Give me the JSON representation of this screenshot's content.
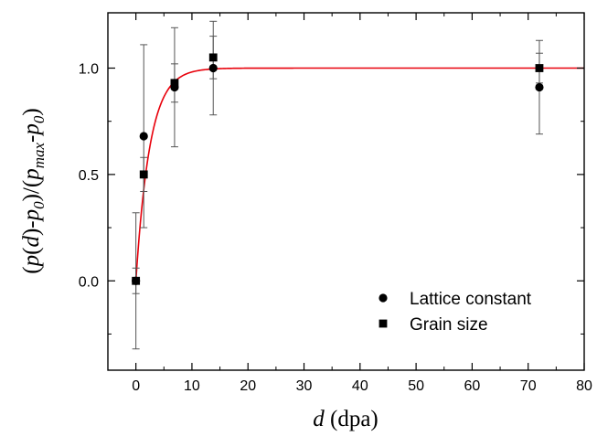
{
  "chart_data": {
    "type": "scatter",
    "xlabel": {
      "italic": "d",
      "rest": " (dpa)"
    },
    "ylabel": [
      {
        "t": "(",
        "s": "n"
      },
      {
        "t": "p",
        "s": "i"
      },
      {
        "t": "(",
        "s": "n"
      },
      {
        "t": "d",
        "s": "i"
      },
      {
        "t": ")-",
        "s": "n"
      },
      {
        "t": "p",
        "s": "i"
      },
      {
        "t": "0",
        "s": "sub"
      },
      {
        "t": ")/(",
        "s": "n"
      },
      {
        "t": "p",
        "s": "i"
      },
      {
        "t": "max",
        "s": "sub"
      },
      {
        "t": "-",
        "s": "n"
      },
      {
        "t": "p",
        "s": "i"
      },
      {
        "t": "0",
        "s": "sub"
      },
      {
        "t": ")",
        "s": "n"
      }
    ],
    "xlim": [
      -5,
      80
    ],
    "ylim": [
      -0.42,
      1.26
    ],
    "xticks": [
      0,
      10,
      20,
      30,
      40,
      50,
      60,
      70,
      80
    ],
    "xtick_labels": [
      "0",
      "10",
      "20",
      "30",
      "40",
      "50",
      "60",
      "70",
      "80"
    ],
    "xminor": [
      -5,
      5,
      15,
      25,
      35,
      45,
      55,
      65,
      75
    ],
    "yticks": [
      0.0,
      0.5,
      1.0
    ],
    "ytick_labels": [
      "0.0",
      "0.5",
      "1.0"
    ],
    "yminor": [
      -0.25,
      0.25,
      0.75
    ],
    "series": [
      {
        "name": "Lattice constant",
        "marker": "circle",
        "color": "#000000",
        "points": [
          {
            "x": 0.0,
            "y": 0.0,
            "err": 0.32
          },
          {
            "x": 1.4,
            "y": 0.68,
            "err": 0.43
          },
          {
            "x": 6.9,
            "y": 0.91,
            "err": 0.28
          },
          {
            "x": 13.8,
            "y": 1.0,
            "err": 0.22
          },
          {
            "x": 72.0,
            "y": 0.91,
            "err": 0.22
          }
        ]
      },
      {
        "name": "Grain size",
        "marker": "square",
        "color": "#000000",
        "points": [
          {
            "x": 0.0,
            "y": 0.0,
            "err": 0.06
          },
          {
            "x": 1.4,
            "y": 0.5,
            "err": 0.08
          },
          {
            "x": 6.9,
            "y": 0.93,
            "err": 0.09
          },
          {
            "x": 13.8,
            "y": 1.05,
            "err": 0.1
          },
          {
            "x": 72.0,
            "y": 1.0,
            "err": 0.07
          }
        ]
      }
    ],
    "fit": {
      "model": "1 - exp(-d / tau)",
      "tau": 2.5,
      "x_start": 0,
      "x_end": 80,
      "color": "#e8000b"
    },
    "legend": {
      "position": "bottom-right"
    }
  }
}
